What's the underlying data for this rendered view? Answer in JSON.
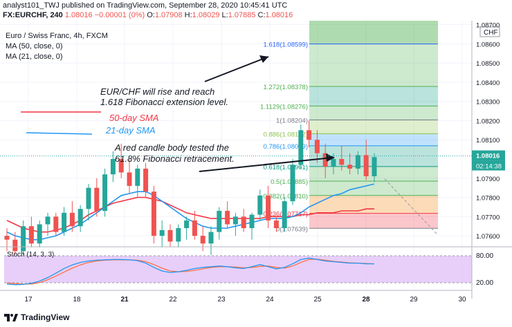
{
  "header": {
    "line1": "analyst101_TWJ published on TradingView.com, September 28, 2020 10:45:41 UTC",
    "symbol": "FX:EURCHF, 240",
    "last": "1.08016",
    "change": "−0.00001 (0%)",
    "o_label": "O:",
    "o": "1.07908",
    "h_label": "H:",
    "h": "1.08029",
    "l_label": "L:",
    "l": "1.07885",
    "c_label": "C:",
    "c": "1.08016"
  },
  "legend": {
    "title": "Euro / Swiss Franc, 4h, FXCM",
    "ma50": "MA (50, close, 0)",
    "ma21": "MA (21, close, 0)"
  },
  "annotations": {
    "rise_line1": "EUR/CHF will rise and reach",
    "rise_line2": "1.618 Fibonacci extension level.",
    "sma50": "50-day SMA",
    "sma21": "21-day SMA",
    "tested_line1": "A red candle body tested the",
    "tested_line2": "61.8% Fibonacci retracement."
  },
  "fib_levels": [
    {
      "label": "1.618(1.08599)",
      "value": 1.08599,
      "color": "#2962ff"
    },
    {
      "label": "1.272(1.08378)",
      "value": 1.08378,
      "color": "#4caf50"
    },
    {
      "label": "1.1129(1.08276)",
      "value": 1.08276,
      "color": "#4caf50"
    },
    {
      "label": "1(1.08204)",
      "value": 1.08204,
      "color": "#787b86"
    },
    {
      "label": "0.886(1.08132)",
      "value": 1.08132,
      "color": "#8bc34a"
    },
    {
      "label": "0.786(1.08069)",
      "value": 1.08069,
      "color": "#2196f3"
    },
    {
      "label": "0.618(1.07961)",
      "value": 1.07961,
      "color": "#089981"
    },
    {
      "label": "0.5(1.07885)",
      "value": 1.07885,
      "color": "#4caf50"
    },
    {
      "label": "0.382(1.07810)",
      "value": 1.0781,
      "color": "#4caf50"
    },
    {
      "label": "0.236(1.07717)",
      "value": 1.07717,
      "color": "#f23645"
    },
    {
      "label": "0(1.07639)",
      "value": 1.07639,
      "color": "#787b86"
    }
  ],
  "price_axis": {
    "currency": "CHF",
    "ticks": [
      "1.08700",
      "1.08600",
      "1.08500",
      "1.08400",
      "1.08300",
      "1.08200",
      "1.08100",
      "1.07900",
      "1.07800",
      "1.07700",
      "1.07600"
    ],
    "tick_values": [
      1.087,
      1.086,
      1.085,
      1.084,
      1.083,
      1.082,
      1.081,
      1.079,
      1.078,
      1.077,
      1.076
    ],
    "current_price": "1.08016",
    "current_value": 1.08016,
    "countdown": "02:14:38"
  },
  "stoch": {
    "label": "Stoch (14, 3, 3)",
    "upper": "80.00",
    "upper_value": 80,
    "lower": "20.00",
    "lower_value": 20
  },
  "time_axis": {
    "labels": [
      "17",
      "18",
      "21",
      "22",
      "23",
      "24",
      "25",
      "28",
      "29",
      "30"
    ],
    "bold": [
      false,
      false,
      true,
      false,
      false,
      false,
      false,
      true,
      false,
      false
    ]
  },
  "footer": {
    "brand": "TradingView"
  },
  "chart_data": {
    "type": "candlestick",
    "symbol": "FX:EURCHF",
    "timeframe": "4h",
    "ylim": [
      1.0755,
      1.0872
    ],
    "candles": [
      [
        1.076,
        1.0764,
        1.0752,
        1.0758
      ],
      [
        1.0758,
        1.0762,
        1.075,
        1.0752
      ],
      [
        1.0752,
        1.0768,
        1.075,
        1.0765
      ],
      [
        1.0765,
        1.077,
        1.0754,
        1.0756
      ],
      [
        1.0756,
        1.0768,
        1.0754,
        1.0766
      ],
      [
        1.0766,
        1.0772,
        1.076,
        1.077
      ],
      [
        1.077,
        1.0772,
        1.076,
        1.0762
      ],
      [
        1.0762,
        1.0775,
        1.076,
        1.0772
      ],
      [
        1.0772,
        1.0778,
        1.0762,
        1.0765
      ],
      [
        1.0765,
        1.0776,
        1.0762,
        1.0774
      ],
      [
        1.0774,
        1.0787,
        1.0768,
        1.0785
      ],
      [
        1.0785,
        1.079,
        1.077,
        1.0773
      ],
      [
        1.0773,
        1.0795,
        1.077,
        1.0792
      ],
      [
        1.0792,
        1.0804,
        1.0788,
        1.08
      ],
      [
        1.08,
        1.0808,
        1.079,
        1.0793
      ],
      [
        1.0793,
        1.08,
        1.0782,
        1.0786
      ],
      [
        1.0786,
        1.0797,
        1.078,
        1.0795
      ],
      [
        1.0795,
        1.0798,
        1.078,
        1.0783
      ],
      [
        1.0783,
        1.0786,
        1.0756,
        1.076
      ],
      [
        1.076,
        1.0768,
        1.0754,
        1.0763
      ],
      [
        1.0763,
        1.0766,
        1.0754,
        1.0757
      ],
      [
        1.0757,
        1.0766,
        1.0754,
        1.0764
      ],
      [
        1.0764,
        1.077,
        1.0758,
        1.0768
      ],
      [
        1.0768,
        1.0773,
        1.0758,
        1.076
      ],
      [
        1.076,
        1.0765,
        1.0752,
        1.0756
      ],
      [
        1.0756,
        1.0765,
        1.075,
        1.0762
      ],
      [
        1.0762,
        1.0775,
        1.0758,
        1.0773
      ],
      [
        1.0773,
        1.0778,
        1.0764,
        1.0766
      ],
      [
        1.0766,
        1.0772,
        1.076,
        1.077
      ],
      [
        1.077,
        1.0774,
        1.0762,
        1.0764
      ],
      [
        1.0764,
        1.0772,
        1.0758,
        1.0771
      ],
      [
        1.0771,
        1.0784,
        1.0768,
        1.0781
      ],
      [
        1.0781,
        1.0786,
        1.0764,
        1.0768
      ],
      [
        1.0768,
        1.077,
        1.0762,
        1.0764
      ],
      [
        1.0764,
        1.078,
        1.0762,
        1.0778
      ],
      [
        1.0778,
        1.08,
        1.0776,
        1.0797
      ],
      [
        1.0797,
        1.0818,
        1.0795,
        1.0815
      ],
      [
        1.0815,
        1.082,
        1.0806,
        1.081
      ],
      [
        1.081,
        1.0815,
        1.0798,
        1.0803
      ],
      [
        1.0803,
        1.0808,
        1.079,
        1.0796
      ],
      [
        1.0796,
        1.0803,
        1.0792,
        1.08
      ],
      [
        1.08,
        1.0807,
        1.0794,
        1.0797
      ],
      [
        1.0797,
        1.0803,
        1.0792,
        1.0795
      ],
      [
        1.0795,
        1.0804,
        1.0792,
        1.0802
      ],
      [
        1.0802,
        1.081,
        1.0789,
        1.0791
      ],
      [
        1.0791,
        1.0803,
        1.0788,
        1.0801
      ]
    ],
    "ma50": [
      1.0768,
      1.0766,
      1.0764,
      1.0763,
      1.0762,
      1.0762,
      1.0763,
      1.0764,
      1.0766,
      1.0768,
      1.0771,
      1.0773,
      1.0775,
      1.0777,
      1.0778,
      1.0779,
      1.078,
      1.078,
      1.0779,
      1.0778,
      1.0776,
      1.0774,
      1.0772,
      1.0771,
      1.077,
      1.0769,
      1.0769,
      1.0769,
      1.0769,
      1.0769,
      1.0769,
      1.0769,
      1.077,
      1.077,
      1.077,
      1.077,
      1.0771,
      1.0771,
      1.0772,
      1.0772,
      1.0772,
      1.0773,
      1.0773,
      1.0773,
      1.0774,
      1.0774
    ],
    "ma21": [
      1.0762,
      1.076,
      1.0759,
      1.0758,
      1.0758,
      1.0759,
      1.076,
      1.0762,
      1.0764,
      1.0766,
      1.0769,
      1.0772,
      1.0775,
      1.0778,
      1.0781,
      1.0782,
      1.0783,
      1.0783,
      1.0781,
      1.0778,
      1.0775,
      1.0772,
      1.0769,
      1.0767,
      1.0765,
      1.0764,
      1.0764,
      1.0764,
      1.0765,
      1.0766,
      1.0767,
      1.0768,
      1.0769,
      1.0769,
      1.0769,
      1.077,
      1.0772,
      1.0775,
      1.0777,
      1.0779,
      1.0781,
      1.0782,
      1.0784,
      1.0785,
      1.0786,
      1.0787
    ],
    "stoch_k": [
      12,
      10,
      11,
      14,
      20,
      30,
      42,
      55,
      65,
      72,
      76,
      78,
      79,
      80,
      80,
      79,
      77,
      70,
      58,
      48,
      44,
      46,
      50,
      55,
      58,
      60,
      62,
      60,
      57,
      55,
      60,
      66,
      60,
      54,
      58,
      68,
      80,
      84,
      80,
      76,
      74,
      72,
      70,
      70,
      68,
      68
    ],
    "stoch_d": [
      15,
      13,
      12,
      12,
      16,
      24,
      34,
      45,
      56,
      65,
      72,
      76,
      78,
      79,
      79,
      79,
      78,
      74,
      66,
      56,
      48,
      46,
      47,
      50,
      54,
      58,
      60,
      60,
      59,
      57,
      58,
      61,
      62,
      58,
      56,
      62,
      72,
      80,
      81,
      78,
      75,
      73,
      71,
      70,
      69,
      68
    ]
  }
}
